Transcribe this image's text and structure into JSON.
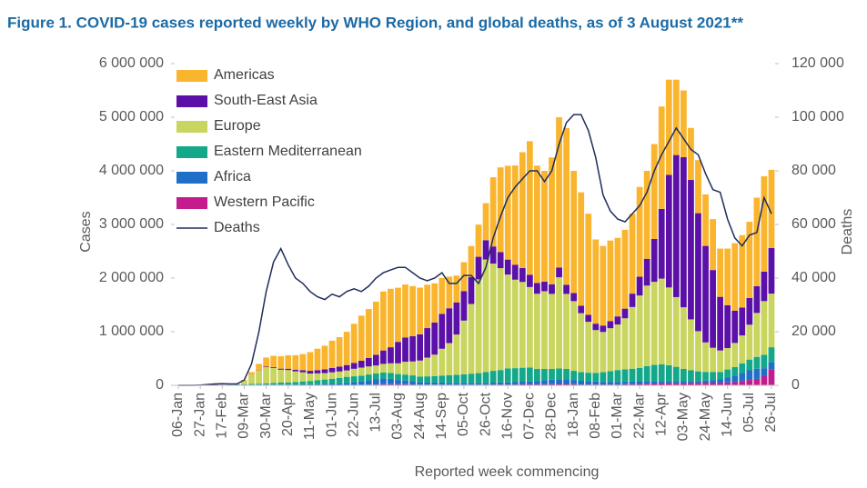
{
  "chart_data": {
    "type": "bar",
    "stacked": true,
    "title": "Figure 1. COVID-19 cases reported weekly by WHO Region, and global deaths, as of 3 August 2021**",
    "x_label": "Reported week commencing",
    "y_label": "Cases",
    "y2_label": "Deaths",
    "legend": "upper left",
    "categories": [
      "06-Jan",
      null,
      null,
      "27-Jan",
      null,
      null,
      "17-Feb",
      null,
      null,
      "09-Mar",
      null,
      null,
      "30-Mar",
      null,
      null,
      "20-Apr",
      null,
      null,
      "11-May",
      null,
      null,
      "01-Jun",
      null,
      null,
      "22-Jun",
      null,
      null,
      "13-Jul",
      null,
      null,
      "03-Aug",
      null,
      null,
      "24-Aug",
      null,
      null,
      "14-Sep",
      null,
      null,
      "05-Oct",
      null,
      null,
      "26-Oct",
      null,
      null,
      "16-Nov",
      null,
      null,
      "07-Dec",
      null,
      null,
      "28-Dec",
      null,
      null,
      "18-Jan",
      null,
      null,
      "08-Feb",
      null,
      null,
      "01-Mar",
      null,
      null,
      "22-Mar",
      null,
      null,
      "12-Apr",
      null,
      null,
      "03-May",
      null,
      null,
      "24-May",
      null,
      null,
      "14-Jun",
      null,
      null,
      "05-Jul",
      null,
      null,
      "26-Jul"
    ],
    "series": [
      {
        "name": "Americas",
        "color": "#fab52f",
        "values": [
          0,
          0,
          0,
          0,
          0,
          0,
          0,
          0,
          2000,
          10000,
          50000,
          125000,
          170000,
          210000,
          230000,
          250000,
          270000,
          300000,
          350000,
          400000,
          440000,
          510000,
          550000,
          620000,
          730000,
          840000,
          910000,
          990000,
          1100000,
          1090000,
          1010000,
          990000,
          935000,
          870000,
          810000,
          730000,
          670000,
          590000,
          500000,
          540000,
          580000,
          600000,
          690000,
          1290000,
          1580000,
          1750000,
          1850000,
          2160000,
          2490000,
          2190000,
          2065000,
          2365000,
          2805000,
          2925000,
          2280000,
          2115000,
          1885000,
          1570000,
          1485000,
          1505000,
          1465000,
          1470000,
          1490000,
          1675000,
          1640000,
          1770000,
          1910000,
          1775000,
          1405000,
          1245000,
          970000,
          990000,
          960000,
          950000,
          900000,
          1055000,
          1260000,
          1350000,
          1420000,
          1650000,
          1780000,
          1460000
        ]
      },
      {
        "name": "South-East Asia",
        "color": "#5b10a8",
        "values": [
          0,
          0,
          0,
          0,
          0,
          0,
          0,
          0,
          0,
          0,
          2000,
          5000,
          10000,
          15000,
          20000,
          25000,
          30000,
          40000,
          50000,
          60000,
          70000,
          80000,
          90000,
          100000,
          110000,
          130000,
          160000,
          200000,
          250000,
          300000,
          400000,
          450000,
          470000,
          490000,
          550000,
          600000,
          650000,
          650000,
          600000,
          550000,
          500000,
          420000,
          360000,
          320000,
          300000,
          280000,
          280000,
          260000,
          230000,
          200000,
          180000,
          180000,
          180000,
          170000,
          150000,
          140000,
          130000,
          120000,
          120000,
          130000,
          150000,
          180000,
          250000,
          350000,
          500000,
          800000,
          1300000,
          2100000,
          2650000,
          2800000,
          2600000,
          2200000,
          1800000,
          1450000,
          1000000,
          800000,
          600000,
          520000,
          500000,
          500000,
          550000,
          850000
        ]
      },
      {
        "name": "Europe",
        "color": "#c9d55f",
        "values": [
          0,
          0,
          0,
          0,
          0,
          0,
          0,
          2000,
          15000,
          70000,
          170000,
          240000,
          300000,
          280000,
          240000,
          230000,
          200000,
          170000,
          140000,
          130000,
          120000,
          120000,
          120000,
          120000,
          140000,
          150000,
          150000,
          150000,
          160000,
          180000,
          200000,
          240000,
          260000,
          300000,
          350000,
          400000,
          500000,
          600000,
          750000,
          1000000,
          1300000,
          1750000,
          2100000,
          2000000,
          1900000,
          1750000,
          1650000,
          1600000,
          1500000,
          1400000,
          1450000,
          1400000,
          1700000,
          1400000,
          1300000,
          1100000,
          950000,
          800000,
          750000,
          800000,
          850000,
          950000,
          1150000,
          1350000,
          1500000,
          1550000,
          1600000,
          1450000,
          1300000,
          1150000,
          950000,
          750000,
          550000,
          450000,
          400000,
          400000,
          450000,
          520000,
          650000,
          820000,
          1000000,
          1000000
        ]
      },
      {
        "name": "Eastern Mediterranean",
        "color": "#12a889",
        "values": [
          0,
          0,
          0,
          0,
          0,
          0,
          0,
          3000,
          8000,
          10000,
          15000,
          20000,
          25000,
          30000,
          35000,
          40000,
          45000,
          55000,
          60000,
          70000,
          80000,
          90000,
          100000,
          110000,
          110000,
          110000,
          110000,
          110000,
          110000,
          110000,
          110000,
          110000,
          110000,
          100000,
          110000,
          120000,
          130000,
          140000,
          150000,
          160000,
          170000,
          180000,
          200000,
          220000,
          230000,
          260000,
          260000,
          260000,
          260000,
          230000,
          210000,
          200000,
          200000,
          190000,
          170000,
          160000,
          160000,
          160000,
          180000,
          200000,
          220000,
          230000,
          240000,
          250000,
          280000,
          300000,
          310000,
          300000,
          270000,
          230000,
          200000,
          180000,
          160000,
          150000,
          140000,
          150000,
          160000,
          180000,
          200000,
          220000,
          250000,
          280000
        ]
      },
      {
        "name": "Africa",
        "color": "#1f6fc8",
        "values": [
          0,
          0,
          0,
          0,
          0,
          0,
          0,
          0,
          0,
          0,
          0,
          1000,
          3000,
          5000,
          6000,
          7000,
          8000,
          10000,
          12000,
          15000,
          20000,
          25000,
          30000,
          40000,
          50000,
          60000,
          80000,
          95000,
          110000,
          100000,
          80000,
          70000,
          60000,
          50000,
          45000,
          40000,
          40000,
          35000,
          35000,
          35000,
          35000,
          35000,
          35000,
          35000,
          40000,
          40000,
          45000,
          50000,
          55000,
          60000,
          75000,
          85000,
          90000,
          90000,
          80000,
          70000,
          60000,
          55000,
          50000,
          50000,
          50000,
          50000,
          50000,
          50000,
          50000,
          45000,
          40000,
          35000,
          35000,
          35000,
          35000,
          35000,
          40000,
          50000,
          60000,
          90000,
          120000,
          150000,
          180000,
          190000,
          150000,
          130000
        ]
      },
      {
        "name": "Western Pacific",
        "color": "#c41c8c",
        "values": [
          0,
          0,
          5000,
          15000,
          20000,
          20000,
          10000,
          10000,
          10000,
          10000,
          10000,
          10000,
          10000,
          10000,
          10000,
          8000,
          8000,
          8000,
          8000,
          8000,
          8000,
          8000,
          8000,
          8000,
          8000,
          10000,
          12000,
          15000,
          20000,
          20000,
          20000,
          20000,
          15000,
          12000,
          12000,
          12000,
          12000,
          12000,
          12000,
          12000,
          12000,
          12000,
          12000,
          15000,
          15000,
          15000,
          15000,
          18000,
          18000,
          18000,
          20000,
          20000,
          25000,
          25000,
          20000,
          15000,
          15000,
          15000,
          15000,
          15000,
          15000,
          20000,
          20000,
          25000,
          30000,
          35000,
          40000,
          40000,
          40000,
          40000,
          45000,
          45000,
          50000,
          50000,
          50000,
          55000,
          60000,
          80000,
          100000,
          120000,
          170000,
          300000
        ]
      },
      {
        "name": "Deaths",
        "type": "line",
        "axis": "y2",
        "color": "#1f2d5c",
        "values": [
          0,
          0,
          0,
          100,
          300,
          500,
          600,
          500,
          500,
          2000,
          8000,
          20000,
          35000,
          46000,
          51000,
          45000,
          40000,
          38000,
          35000,
          33000,
          32000,
          34000,
          33000,
          35000,
          36000,
          35000,
          37000,
          40000,
          42000,
          43000,
          44000,
          44000,
          42000,
          40000,
          39000,
          40000,
          42000,
          38000,
          38000,
          41000,
          41000,
          38000,
          44000,
          55000,
          63000,
          70000,
          74000,
          77000,
          80000,
          80000,
          76000,
          80000,
          90000,
          98000,
          101000,
          101000,
          95000,
          85000,
          71000,
          65000,
          62000,
          61000,
          64000,
          67000,
          72000,
          80000,
          86000,
          91000,
          96000,
          92000,
          88000,
          86000,
          79000,
          73000,
          72000,
          62000,
          55000,
          52000,
          56000,
          57000,
          70000,
          64000
        ]
      }
    ],
    "ylim": [
      0,
      6000000
    ],
    "yticks": [
      0,
      {
        "value": 1000000,
        "label": "1 000 000"
      },
      {
        "value": 2000000,
        "label": "2 000 000"
      },
      {
        "value": 3000000,
        "label": "3 000 000"
      },
      {
        "value": 4000000,
        "label": "4 000 000"
      },
      {
        "value": 5000000,
        "label": "5 000 000"
      },
      {
        "value": 6000000,
        "label": "6 000 000"
      }
    ],
    "y2lim": [
      0,
      120000
    ],
    "y2ticks": [
      0,
      {
        "value": 20000,
        "label": "20 000"
      },
      {
        "value": 40000,
        "label": "40 000"
      },
      {
        "value": 60000,
        "label": "60 000"
      },
      {
        "value": 80000,
        "label": "80 000"
      },
      {
        "value": 100000,
        "label": "100 000"
      },
      {
        "value": 120000,
        "label": "120 000"
      }
    ]
  }
}
